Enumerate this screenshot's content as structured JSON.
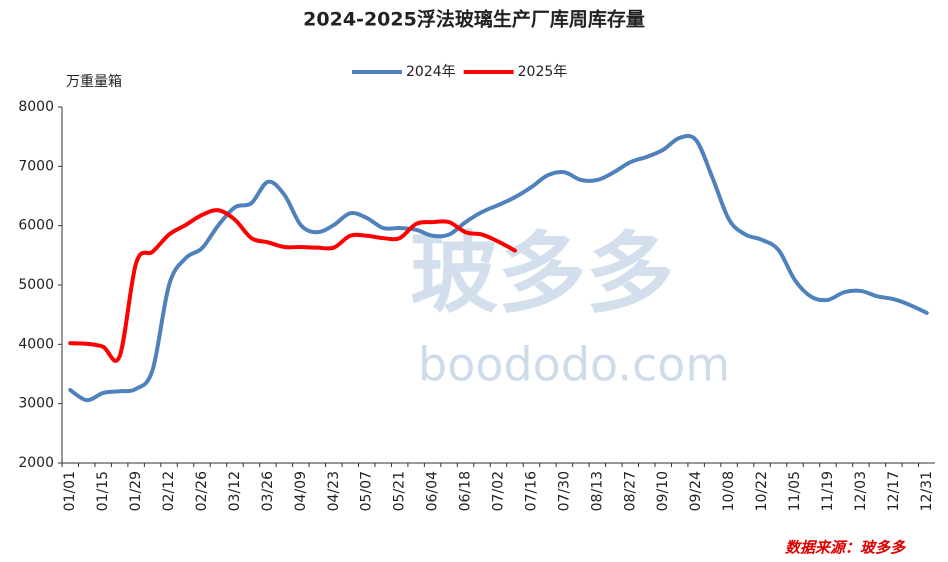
{
  "chart_data": {
    "type": "line",
    "title": "2024-2025浮法玻璃生产厂库周库存量",
    "y_label": "万重量箱",
    "source": "数据来源：玻多多",
    "watermark": [
      "玻多多",
      "boododo.com"
    ],
    "categories": [
      "01/01",
      null,
      "01/15",
      null,
      "01/29",
      null,
      "02/12",
      null,
      "02/26",
      null,
      "03/12",
      null,
      "03/26",
      null,
      "04/09",
      null,
      "04/23",
      null,
      "05/07",
      null,
      "05/21",
      null,
      "06/04",
      null,
      "06/18",
      null,
      "07/02",
      null,
      "07/16",
      null,
      "07/30",
      null,
      "08/13",
      null,
      "08/27",
      null,
      "09/10",
      null,
      "09/24",
      null,
      "10/08",
      null,
      "10/22",
      null,
      "11/05",
      null,
      "11/19",
      null,
      "12/03",
      null,
      "12/17",
      null,
      "12/31"
    ],
    "series": [
      {
        "name": "2024年",
        "color": "#4f81bd",
        "values": [
          3230,
          3060,
          3180,
          3210,
          3250,
          3570,
          5000,
          5450,
          5620,
          6010,
          6310,
          6380,
          6740,
          6520,
          6010,
          5890,
          6010,
          6210,
          6130,
          5960,
          5960,
          5930,
          5830,
          5850,
          6060,
          6230,
          6350,
          6480,
          6650,
          6850,
          6900,
          6770,
          6770,
          6900,
          7070,
          7160,
          7280,
          7480,
          7440,
          6800,
          6100,
          5850,
          5760,
          5590,
          5080,
          4800,
          4750,
          4880,
          4900,
          4810,
          4760,
          4660,
          4530
        ]
      },
      {
        "name": "2025年",
        "color": "#ff0000",
        "values": [
          4020,
          4010,
          3960,
          3800,
          5370,
          5560,
          5850,
          6010,
          6180,
          6260,
          6100,
          5790,
          5720,
          5640,
          5640,
          5630,
          5630,
          5830,
          5830,
          5790,
          5790,
          6030,
          6060,
          6060,
          5890,
          5850,
          5730,
          5580,
          null,
          null,
          null,
          null,
          null,
          null,
          null,
          null,
          null,
          null,
          null,
          null,
          null,
          null,
          null,
          null,
          null,
          null,
          null,
          null,
          null,
          null,
          null,
          null,
          null
        ]
      }
    ],
    "ylim": [
      2000,
      8000
    ],
    "yticks": [
      2000,
      3000,
      4000,
      5000,
      6000,
      7000,
      8000
    ],
    "grid": false
  }
}
